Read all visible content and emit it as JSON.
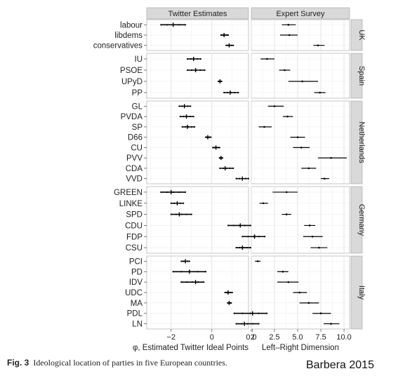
{
  "chart_data": {
    "type": "scatter",
    "panels": [
      "Twitter Estimates",
      "Expert Survey"
    ],
    "xlabels": [
      "φ, Estimated Twitter Ideal Points",
      "Left–Right Dimension"
    ],
    "xticks": [
      [
        "−2",
        "0",
        "2"
      ],
      [
        "0.0",
        "2.5",
        "5.0",
        "7.5",
        "10.0"
      ]
    ],
    "xlim": [
      [
        -3.2,
        1.8
      ],
      [
        0,
        10.6
      ]
    ],
    "grid": true,
    "countries": [
      {
        "name": "UK",
        "parties": [
          {
            "party": "labour",
            "twitter": -1.9,
            "twitter_range": [
              -2.5,
              -1.3
            ],
            "expert": 4.0,
            "expert_range": [
              3.3,
              4.8
            ]
          },
          {
            "party": "libdems",
            "twitter": 0.6,
            "twitter_range": [
              0.45,
              0.8
            ],
            "expert": 4.1,
            "expert_range": [
              3.1,
              5.0
            ]
          },
          {
            "party": "conservatives",
            "twitter": 0.85,
            "twitter_range": [
              0.7,
              1.05
            ],
            "expert": 7.2,
            "expert_range": [
              6.7,
              7.9
            ]
          }
        ]
      },
      {
        "name": "Spain",
        "parties": [
          {
            "party": "IU",
            "twitter": -0.9,
            "twitter_range": [
              -1.2,
              -0.55
            ],
            "expert": 1.7,
            "expert_range": [
              1.0,
              2.5
            ]
          },
          {
            "party": "PSOE",
            "twitter": -0.8,
            "twitter_range": [
              -1.2,
              -0.35
            ],
            "expert": 3.6,
            "expert_range": [
              3.0,
              4.2
            ]
          },
          {
            "party": "UPyD",
            "twitter": 0.4,
            "twitter_range": [
              0.32,
              0.48
            ],
            "expert": 5.5,
            "expert_range": [
              4.0,
              7.2
            ]
          },
          {
            "party": "PP",
            "twitter": 0.9,
            "twitter_range": [
              0.6,
              1.3
            ],
            "expert": 7.4,
            "expert_range": [
              6.8,
              8.0
            ]
          }
        ]
      },
      {
        "name": "Netherlands",
        "parties": [
          {
            "party": "GL",
            "twitter": -1.35,
            "twitter_range": [
              -1.6,
              -1.05
            ],
            "expert": 2.5,
            "expert_range": [
              1.8,
              3.5
            ]
          },
          {
            "party": "PVDA",
            "twitter": -1.25,
            "twitter_range": [
              -1.55,
              -0.9
            ],
            "expert": 3.9,
            "expert_range": [
              3.4,
              4.5
            ]
          },
          {
            "party": "SP",
            "twitter": -1.2,
            "twitter_range": [
              -1.45,
              -0.85
            ],
            "expert": 1.4,
            "expert_range": [
              0.8,
              2.2
            ]
          },
          {
            "party": "D66",
            "twitter": -0.2,
            "twitter_range": [
              -0.3,
              -0.05
            ],
            "expert": 5.0,
            "expert_range": [
              4.2,
              5.8
            ]
          },
          {
            "party": "CU",
            "twitter": 0.2,
            "twitter_range": [
              0.05,
              0.38
            ],
            "expert": 5.4,
            "expert_range": [
              4.5,
              6.3
            ]
          },
          {
            "party": "PVV",
            "twitter": 0.45,
            "twitter_range": [
              0.38,
              0.52
            ],
            "expert": 8.6,
            "expert_range": [
              7.2,
              10.3
            ]
          },
          {
            "party": "CDA",
            "twitter": 0.65,
            "twitter_range": [
              0.4,
              1.05
            ],
            "expert": 6.2,
            "expert_range": [
              5.4,
              7.0
            ]
          },
          {
            "party": "VVD",
            "twitter": 1.5,
            "twitter_range": [
              1.2,
              1.8
            ],
            "expert": 7.9,
            "expert_range": [
              7.5,
              8.4
            ]
          }
        ]
      },
      {
        "name": "Germany",
        "parties": [
          {
            "party": "GREEN",
            "twitter": -2.0,
            "twitter_range": [
              -2.5,
              -1.3
            ],
            "expert": 3.8,
            "expert_range": [
              2.3,
              5.0
            ]
          },
          {
            "party": "LINKE",
            "twitter": -1.7,
            "twitter_range": [
              -2.0,
              -1.4
            ],
            "expert": 1.3,
            "expert_range": [
              0.9,
              1.8
            ]
          },
          {
            "party": "SPD",
            "twitter": -1.6,
            "twitter_range": [
              -2.0,
              -1.0
            ],
            "expert": 3.8,
            "expert_range": [
              3.3,
              4.3
            ]
          },
          {
            "party": "CDU",
            "twitter": 1.4,
            "twitter_range": [
              0.8,
              1.9
            ],
            "expert": 6.3,
            "expert_range": [
              5.7,
              6.9
            ]
          },
          {
            "party": "FDP",
            "twitter": 2.1,
            "twitter_range": [
              1.5,
              2.6
            ],
            "expert": 6.6,
            "expert_range": [
              5.6,
              7.7
            ]
          },
          {
            "party": "CSU",
            "twitter": 1.5,
            "twitter_range": [
              1.2,
              1.9
            ],
            "expert": 7.3,
            "expert_range": [
              6.4,
              8.2
            ]
          }
        ]
      },
      {
        "name": "Italy",
        "parties": [
          {
            "party": "PCI",
            "twitter": -1.3,
            "twitter_range": [
              -1.5,
              -1.1
            ],
            "expert": 0.7,
            "expert_range": [
              0.4,
              1.0
            ]
          },
          {
            "party": "PD",
            "twitter": -1.1,
            "twitter_range": [
              -1.9,
              -0.3
            ],
            "expert": 3.4,
            "expert_range": [
              2.8,
              4.0
            ]
          },
          {
            "party": "IDV",
            "twitter": -0.8,
            "twitter_range": [
              -1.5,
              -0.4
            ],
            "expert": 4.0,
            "expert_range": [
              2.8,
              5.1
            ]
          },
          {
            "party": "UDC",
            "twitter": 0.8,
            "twitter_range": [
              0.65,
              1.0
            ],
            "expert": 5.2,
            "expert_range": [
              4.5,
              6.0
            ]
          },
          {
            "party": "MA",
            "twitter": 0.85,
            "twitter_range": [
              0.78,
              0.95
            ],
            "expert": 6.2,
            "expert_range": [
              5.2,
              7.3
            ]
          },
          {
            "party": "PDL",
            "twitter": 2.0,
            "twitter_range": [
              1.1,
              2.7
            ],
            "expert": 7.5,
            "expert_range": [
              6.6,
              8.6
            ]
          },
          {
            "party": "LN",
            "twitter": 1.6,
            "twitter_range": [
              1.2,
              2.3
            ],
            "expert": 8.6,
            "expert_range": [
              7.8,
              9.5
            ]
          }
        ]
      }
    ]
  },
  "caption": {
    "label": "Fig. 3",
    "text": "Ideological location of parties in five European countries."
  },
  "credit": "Barbera 2015"
}
